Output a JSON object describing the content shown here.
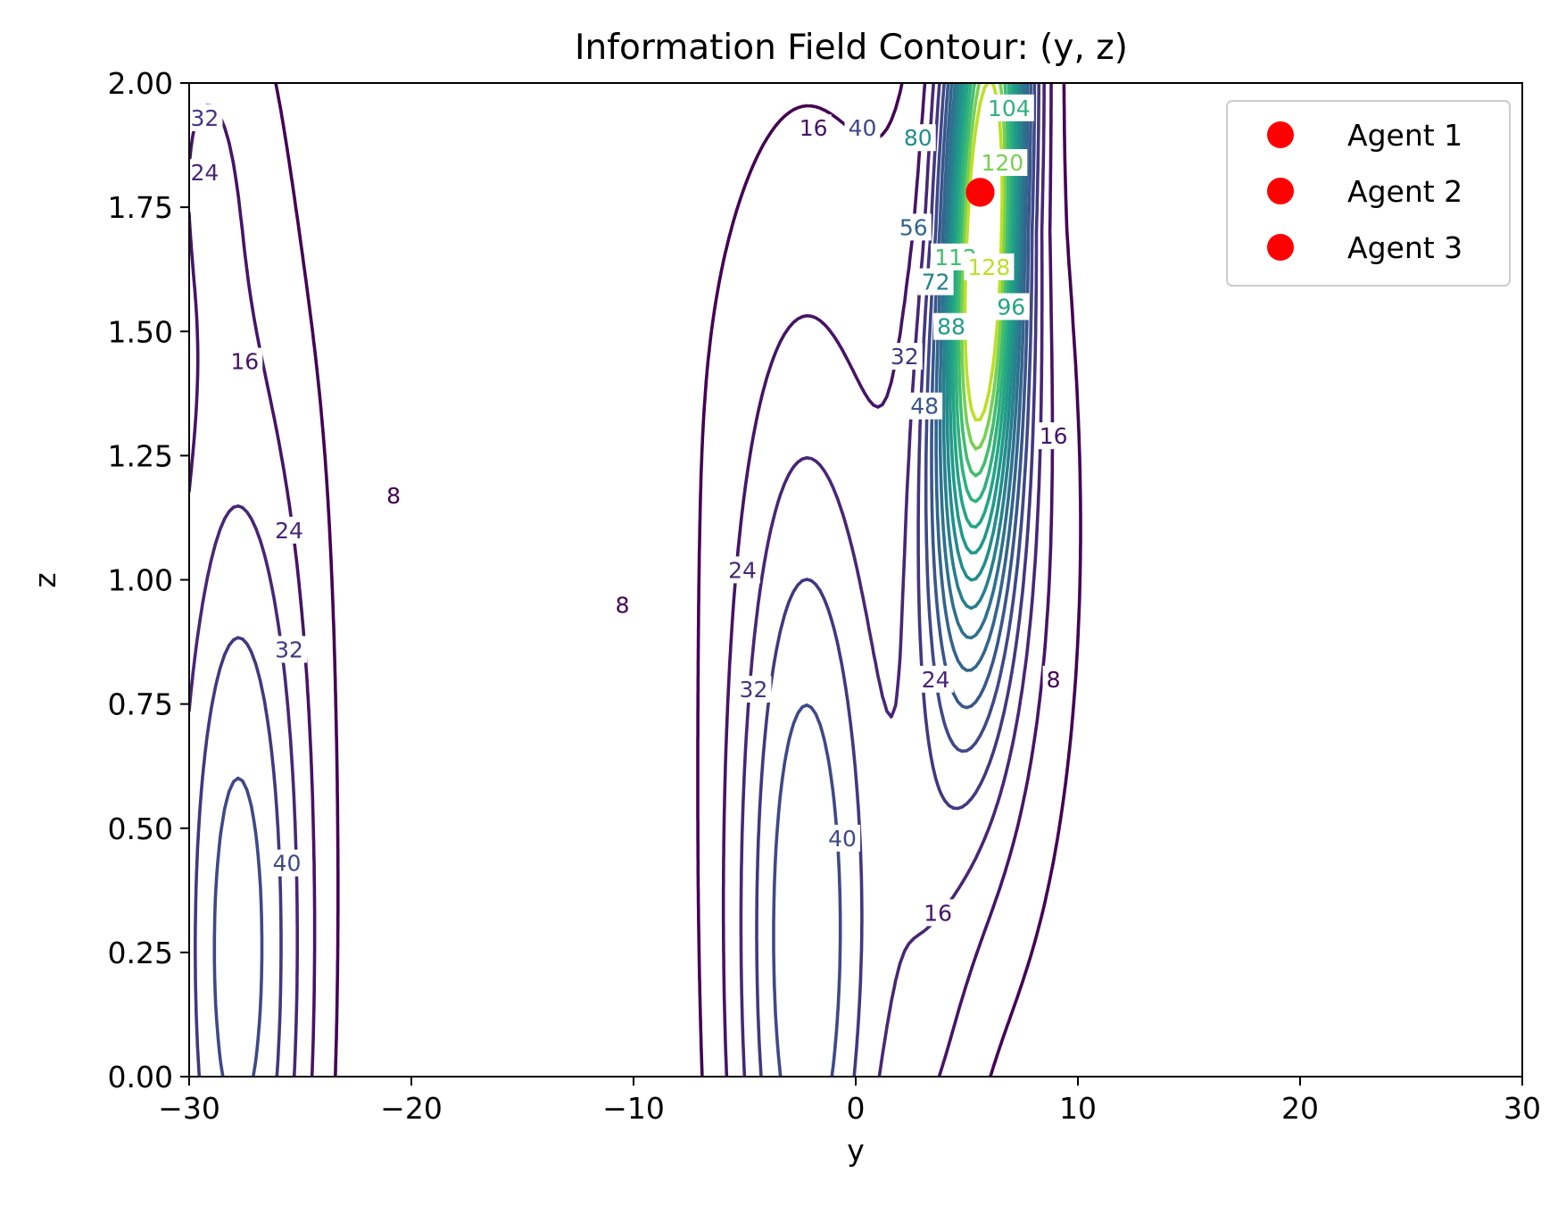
{
  "chart_data": {
    "type": "contour",
    "title": "Information Field Contour: (y, z)",
    "xlabel": "y",
    "ylabel": "z",
    "xlim": [
      -30,
      30
    ],
    "ylim": [
      0,
      2
    ],
    "xticks": [
      -30,
      -20,
      -10,
      0,
      10,
      20,
      30
    ],
    "xtick_labels": [
      "−30",
      "−20",
      "−10",
      "0",
      "10",
      "20",
      "30"
    ],
    "yticks": [
      0,
      0.25,
      0.5,
      0.75,
      1.0,
      1.25,
      1.5,
      1.75,
      2.0
    ],
    "ytick_labels": [
      "0.00",
      "0.25",
      "0.50",
      "0.75",
      "1.00",
      "1.25",
      "1.50",
      "1.75",
      "2.00"
    ],
    "colormap": "viridis",
    "contour_levels": [
      8,
      16,
      24,
      32,
      40,
      48,
      56,
      64,
      72,
      80,
      88,
      96,
      104,
      112,
      120,
      128
    ],
    "peak": {
      "y": 5.6,
      "z": 1.78
    },
    "contour_labels": [
      {
        "text": "32",
        "level": 32,
        "y": -29.3,
        "z": 1.93
      },
      {
        "text": "24",
        "level": 24,
        "y": -29.3,
        "z": 1.82
      },
      {
        "text": "16",
        "level": 16,
        "y": -27.5,
        "z": 1.44
      },
      {
        "text": "8",
        "level": 8,
        "y": -20.8,
        "z": 1.17
      },
      {
        "text": "24",
        "level": 24,
        "y": -25.5,
        "z": 1.1
      },
      {
        "text": "32",
        "level": 32,
        "y": -25.5,
        "z": 0.86
      },
      {
        "text": "40",
        "level": 40,
        "y": -25.6,
        "z": 0.43
      },
      {
        "text": "8",
        "level": 8,
        "y": -10.5,
        "z": 0.95
      },
      {
        "text": "24",
        "level": 24,
        "y": -5.1,
        "z": 1.02
      },
      {
        "text": "32",
        "level": 32,
        "y": -4.6,
        "z": 0.78
      },
      {
        "text": "40",
        "level": 40,
        "y": -0.6,
        "z": 0.48
      },
      {
        "text": "16",
        "level": 16,
        "y": -1.9,
        "z": 1.91
      },
      {
        "text": "40",
        "level": 40,
        "y": 0.3,
        "z": 1.91
      },
      {
        "text": "80",
        "level": 80,
        "y": 2.8,
        "z": 1.89
      },
      {
        "text": "56",
        "level": 56,
        "y": 2.6,
        "z": 1.71
      },
      {
        "text": "72",
        "level": 72,
        "y": 3.6,
        "z": 1.6
      },
      {
        "text": "88",
        "level": 88,
        "y": 4.3,
        "z": 1.51
      },
      {
        "text": "112",
        "level": 112,
        "y": 4.5,
        "z": 1.65
      },
      {
        "text": "128",
        "level": 128,
        "y": 6.0,
        "z": 1.63
      },
      {
        "text": "120",
        "level": 120,
        "y": 6.6,
        "z": 1.84
      },
      {
        "text": "104",
        "level": 104,
        "y": 6.9,
        "z": 1.95
      },
      {
        "text": "96",
        "level": 96,
        "y": 7.0,
        "z": 1.55
      },
      {
        "text": "32",
        "level": 32,
        "y": 2.2,
        "z": 1.45
      },
      {
        "text": "48",
        "level": 48,
        "y": 3.1,
        "z": 1.35
      },
      {
        "text": "16",
        "level": 16,
        "y": 8.9,
        "z": 1.29
      },
      {
        "text": "24",
        "level": 24,
        "y": 3.6,
        "z": 0.8
      },
      {
        "text": "8",
        "level": 8,
        "y": 8.9,
        "z": 0.8
      },
      {
        "text": "16",
        "level": 16,
        "y": 3.7,
        "z": 0.33
      }
    ],
    "scatter_series": [
      {
        "name": "Agent 1",
        "color": "#ff0000",
        "points": [
          {
            "y": 5.6,
            "z": 1.78
          }
        ]
      },
      {
        "name": "Agent 2",
        "color": "#ff0000",
        "points": [
          {
            "y": 5.6,
            "z": 1.78
          }
        ]
      },
      {
        "name": "Agent 3",
        "color": "#ff0000",
        "points": [
          {
            "y": 5.6,
            "z": 1.78
          }
        ]
      }
    ],
    "legend_position": "upper right"
  }
}
